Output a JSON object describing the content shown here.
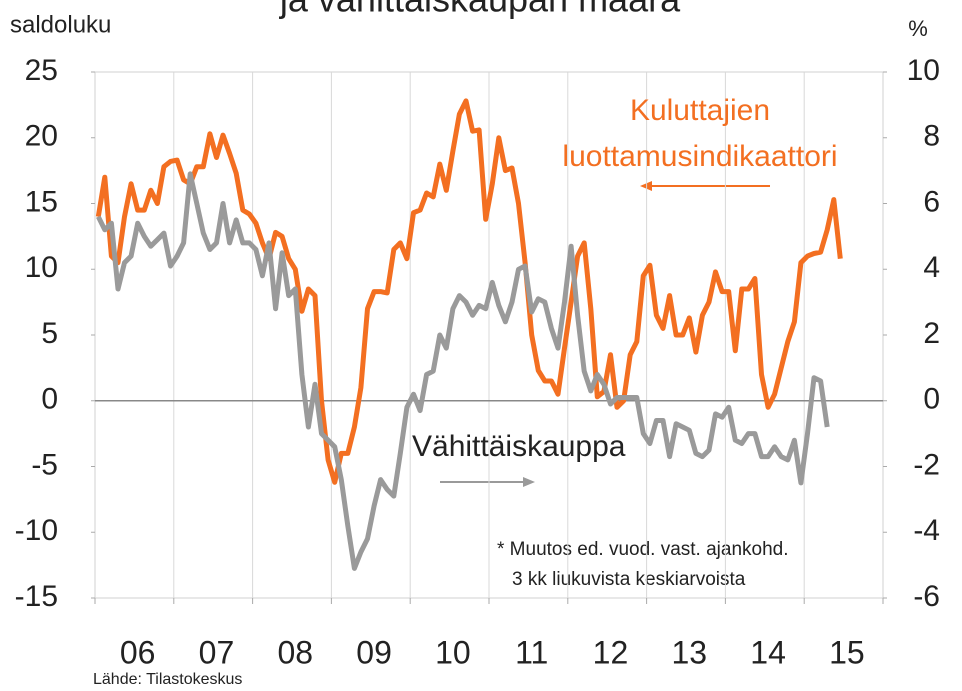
{
  "chart_data": {
    "type": "line",
    "title": "ja vähittäiskaupan määrä",
    "y_label": "saldoluku",
    "y2_label": "%",
    "source": "Lähde: Tilastokeskus",
    "footnote": [
      "* Muutos ed. vuod. vast. ajankohd.",
      "3 kk liukuvista keskiarvoista"
    ],
    "categories": [
      null,
      null,
      null,
      null,
      null,
      null,
      "06",
      null,
      null,
      null,
      null,
      null,
      null,
      null,
      null,
      null,
      null,
      null,
      "07",
      null,
      null,
      null,
      null,
      null,
      null,
      null,
      null,
      null,
      null,
      null,
      "08",
      null,
      null,
      null,
      null,
      null,
      null,
      null,
      null,
      null,
      null,
      null,
      "09",
      null,
      null,
      null,
      null,
      null,
      null,
      null,
      null,
      null,
      null,
      null,
      "10",
      null,
      null,
      null,
      null,
      null,
      null,
      null,
      null,
      null,
      null,
      null,
      "11",
      null,
      null,
      null,
      null,
      null,
      null,
      null,
      null,
      null,
      null,
      null,
      "12",
      null,
      null,
      null,
      null,
      null,
      null,
      null,
      null,
      null,
      null,
      null,
      "13",
      null,
      null,
      null,
      null,
      null,
      null,
      null,
      null,
      null,
      null,
      null,
      "14",
      null,
      null,
      null,
      null,
      null,
      null,
      null,
      null,
      null,
      null,
      null,
      "15",
      null,
      null,
      null,
      null,
      null
    ],
    "ylim": [
      -15,
      25
    ],
    "yticks": [
      -15,
      -10,
      -5,
      0,
      5,
      10,
      15,
      20,
      25
    ],
    "y2lim": [
      -6,
      10
    ],
    "y2ticks": [
      -6,
      -4,
      -2,
      0,
      2,
      4,
      6,
      8,
      10
    ],
    "grid": false,
    "series": [
      {
        "name": "Kuluttajien luottamusindikaattori",
        "color": "#f36f21",
        "values": [
          14,
          17,
          11,
          10.5,
          14,
          16.5,
          14.5,
          14.5,
          16,
          15,
          17.8,
          18.2,
          18.3,
          16.8,
          16.5,
          17.8,
          17.8,
          20.3,
          18.5,
          20.2,
          18.8,
          17.3,
          14.5,
          14.2,
          13.5,
          12,
          10.8,
          12.8,
          12.5,
          10.8,
          10,
          6.8,
          8.5,
          8,
          0,
          -4.5,
          -6.2,
          -4,
          -4,
          -2,
          1,
          7,
          8.3,
          8.3,
          8.2,
          11.5,
          12,
          10.8,
          14.3,
          14.5,
          15.8,
          15.5,
          18,
          16,
          19,
          21.8,
          22.8,
          20.5,
          20.6,
          13.8,
          16.5,
          20,
          17.5,
          17.7,
          15,
          10.5,
          5,
          2.3,
          1.5,
          1.5,
          0.5,
          4,
          7.5,
          11,
          12,
          7,
          0.3,
          0.7,
          3.5,
          -0.5,
          0,
          3.5,
          4.5,
          9.5,
          10.3,
          6.5,
          5.5,
          8,
          5,
          5,
          6.3,
          3.7,
          6.5,
          7.5,
          9.8,
          8.3,
          8.3,
          3.8,
          8.5,
          8.5,
          9.3,
          2,
          -0.5,
          0.5,
          2.5,
          4.5,
          6,
          10.5,
          11,
          11.2,
          11.3,
          13,
          15.3,
          10.8,
          null,
          null,
          null,
          null,
          null,
          null
        ]
      },
      {
        "name": "Vähittäiskauppa",
        "color": "#9a9a9a",
        "axis": "y2",
        "values": [
          5.6,
          5.2,
          5.4,
          3.4,
          4.2,
          4.4,
          5.4,
          5.0,
          4.7,
          4.9,
          5.1,
          4.1,
          4.4,
          4.8,
          6.9,
          6.0,
          5.1,
          4.6,
          4.8,
          6.0,
          4.8,
          5.5,
          4.8,
          4.8,
          4.6,
          3.8,
          4.8,
          2.8,
          4.5,
          3.2,
          3.4,
          0.8,
          -0.8,
          0.5,
          -1.0,
          -1.2,
          -1.4,
          -2.4,
          -3.8,
          -5.1,
          -4.6,
          -4.2,
          -3.2,
          -2.4,
          -2.7,
          -2.9,
          -1.6,
          -0.2,
          0.2,
          -0.3,
          0.8,
          0.9,
          2.0,
          1.6,
          2.8,
          3.2,
          3.0,
          2.6,
          2.9,
          2.8,
          3.6,
          2.9,
          2.4,
          3.0,
          4.0,
          4.1,
          2.7,
          3.1,
          3.0,
          2.2,
          1.6,
          3.0,
          4.7,
          2.6,
          0.9,
          0.3,
          0.8,
          0.5,
          -0.1,
          0.1,
          0.1,
          0.1,
          0.1,
          -1.0,
          -1.3,
          -0.6,
          -0.6,
          -1.7,
          -0.7,
          -0.8,
          -0.9,
          -1.6,
          -1.7,
          -1.5,
          -0.4,
          -0.5,
          -0.2,
          -1.2,
          -1.3,
          -1.0,
          -1.0,
          -1.7,
          -1.7,
          -1.4,
          -1.7,
          -1.8,
          -1.2,
          -2.5,
          -1.0,
          0.7,
          0.6,
          -0.8,
          null,
          null,
          null,
          null,
          null,
          null,
          null,
          null
        ]
      }
    ]
  }
}
